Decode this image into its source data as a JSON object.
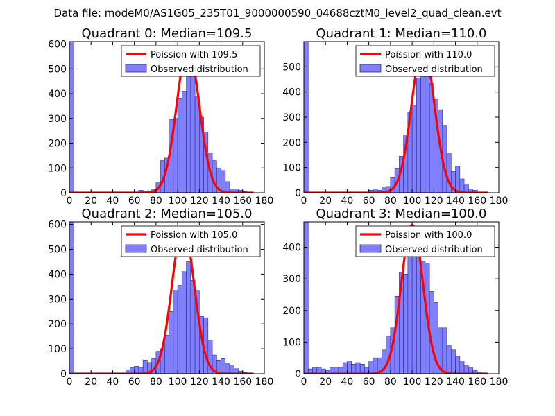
{
  "figure_title": "Data file: modeM0/AS1G05_235T01_9000000590_04688cztM0_level2_quad_clean.evt",
  "colors": {
    "bar_fill": "#8080ff",
    "bar_edge": "#2a2a8a",
    "poisson_line": "#ff0000",
    "axes": "#000000"
  },
  "chart_data": [
    {
      "type": "bar",
      "title": "Quadrant 0: Median=109.5",
      "xlim": [
        0,
        180
      ],
      "ylim": [
        0,
        610
      ],
      "xticks": [
        0,
        20,
        40,
        60,
        80,
        100,
        120,
        140,
        160,
        180
      ],
      "yticks": [
        0,
        100,
        200,
        300,
        400,
        500,
        600
      ],
      "bin_width": 4,
      "bins": [
        {
          "x": 0,
          "count": 610
        },
        {
          "x": 64,
          "count": 10
        },
        {
          "x": 68,
          "count": 6
        },
        {
          "x": 72,
          "count": 8
        },
        {
          "x": 76,
          "count": 15
        },
        {
          "x": 80,
          "count": 40
        },
        {
          "x": 84,
          "count": 130
        },
        {
          "x": 88,
          "count": 140
        },
        {
          "x": 92,
          "count": 295
        },
        {
          "x": 96,
          "count": 300
        },
        {
          "x": 100,
          "count": 380
        },
        {
          "x": 104,
          "count": 410
        },
        {
          "x": 108,
          "count": 505
        },
        {
          "x": 112,
          "count": 555
        },
        {
          "x": 116,
          "count": 390
        },
        {
          "x": 120,
          "count": 305
        },
        {
          "x": 124,
          "count": 245
        },
        {
          "x": 128,
          "count": 160
        },
        {
          "x": 132,
          "count": 130
        },
        {
          "x": 136,
          "count": 100
        },
        {
          "x": 140,
          "count": 90
        },
        {
          "x": 144,
          "count": 45
        },
        {
          "x": 148,
          "count": 15
        },
        {
          "x": 152,
          "count": 15
        },
        {
          "x": 156,
          "count": 10
        },
        {
          "x": 160,
          "count": 5
        }
      ],
      "poisson": {
        "mean": 109.5,
        "peak": 585
      },
      "legend": [
        "Poission with 109.5",
        "Observed distribution"
      ]
    },
    {
      "type": "bar",
      "title": "Quadrant 1: Median=110.0",
      "xlim": [
        0,
        180
      ],
      "ylim": [
        0,
        600
      ],
      "xticks": [
        0,
        20,
        40,
        60,
        80,
        100,
        120,
        140,
        160,
        180
      ],
      "yticks": [
        0,
        100,
        200,
        300,
        400,
        500
      ],
      "bin_width": 4,
      "bins": [
        {
          "x": 0,
          "count": 600
        },
        {
          "x": 60,
          "count": 10
        },
        {
          "x": 64,
          "count": 15
        },
        {
          "x": 68,
          "count": 10
        },
        {
          "x": 72,
          "count": 20
        },
        {
          "x": 76,
          "count": 25
        },
        {
          "x": 80,
          "count": 60
        },
        {
          "x": 84,
          "count": 95
        },
        {
          "x": 88,
          "count": 145
        },
        {
          "x": 92,
          "count": 230
        },
        {
          "x": 96,
          "count": 320
        },
        {
          "x": 100,
          "count": 345
        },
        {
          "x": 104,
          "count": 455
        },
        {
          "x": 108,
          "count": 505
        },
        {
          "x": 112,
          "count": 575
        },
        {
          "x": 116,
          "count": 435
        },
        {
          "x": 120,
          "count": 370
        },
        {
          "x": 124,
          "count": 330
        },
        {
          "x": 128,
          "count": 265
        },
        {
          "x": 132,
          "count": 155
        },
        {
          "x": 136,
          "count": 85
        },
        {
          "x": 140,
          "count": 105
        },
        {
          "x": 144,
          "count": 55
        },
        {
          "x": 148,
          "count": 35
        },
        {
          "x": 152,
          "count": 15
        },
        {
          "x": 156,
          "count": 10
        }
      ],
      "poisson": {
        "mean": 110.0,
        "peak": 580
      },
      "legend": [
        "Poission with 110.0",
        "Observed distribution"
      ]
    },
    {
      "type": "bar",
      "title": "Quadrant 2: Median=105.0",
      "xlim": [
        0,
        180
      ],
      "ylim": [
        0,
        610
      ],
      "xticks": [
        0,
        20,
        40,
        60,
        80,
        100,
        120,
        140,
        160,
        180
      ],
      "yticks": [
        0,
        100,
        200,
        300,
        400,
        500,
        600
      ],
      "bin_width": 4,
      "bins": [
        {
          "x": 0,
          "count": 610
        },
        {
          "x": 52,
          "count": 15
        },
        {
          "x": 56,
          "count": 25
        },
        {
          "x": 60,
          "count": 30
        },
        {
          "x": 64,
          "count": 25
        },
        {
          "x": 68,
          "count": 55
        },
        {
          "x": 72,
          "count": 45
        },
        {
          "x": 76,
          "count": 60
        },
        {
          "x": 80,
          "count": 90
        },
        {
          "x": 84,
          "count": 100
        },
        {
          "x": 88,
          "count": 155
        },
        {
          "x": 92,
          "count": 250
        },
        {
          "x": 96,
          "count": 335
        },
        {
          "x": 100,
          "count": 355
        },
        {
          "x": 104,
          "count": 410
        },
        {
          "x": 108,
          "count": 450
        },
        {
          "x": 112,
          "count": 375
        },
        {
          "x": 116,
          "count": 335
        },
        {
          "x": 120,
          "count": 230
        },
        {
          "x": 124,
          "count": 225
        },
        {
          "x": 128,
          "count": 135
        },
        {
          "x": 132,
          "count": 75
        },
        {
          "x": 136,
          "count": 55
        },
        {
          "x": 140,
          "count": 60
        },
        {
          "x": 144,
          "count": 40
        },
        {
          "x": 148,
          "count": 35
        },
        {
          "x": 152,
          "count": 20
        },
        {
          "x": 156,
          "count": 10
        },
        {
          "x": 160,
          "count": 5
        }
      ],
      "poisson": {
        "mean": 105.0,
        "peak": 590
      },
      "legend": [
        "Poission with 105.0",
        "Observed distribution"
      ]
    },
    {
      "type": "bar",
      "title": "Quadrant 3: Median=100.0",
      "xlim": [
        0,
        180
      ],
      "ylim": [
        0,
        480
      ],
      "xticks": [
        0,
        20,
        40,
        60,
        80,
        100,
        120,
        140,
        160,
        180
      ],
      "yticks": [
        0,
        100,
        200,
        300,
        400
      ],
      "bin_width": 4,
      "bins": [
        {
          "x": 0,
          "count": 480
        },
        {
          "x": 4,
          "count": 15
        },
        {
          "x": 8,
          "count": 20
        },
        {
          "x": 12,
          "count": 20
        },
        {
          "x": 16,
          "count": 15
        },
        {
          "x": 20,
          "count": 10
        },
        {
          "x": 24,
          "count": 20
        },
        {
          "x": 28,
          "count": 20
        },
        {
          "x": 32,
          "count": 20
        },
        {
          "x": 36,
          "count": 35
        },
        {
          "x": 40,
          "count": 40
        },
        {
          "x": 44,
          "count": 30
        },
        {
          "x": 48,
          "count": 35
        },
        {
          "x": 52,
          "count": 30
        },
        {
          "x": 56,
          "count": 20
        },
        {
          "x": 60,
          "count": 40
        },
        {
          "x": 64,
          "count": 50
        },
        {
          "x": 68,
          "count": 50
        },
        {
          "x": 72,
          "count": 75
        },
        {
          "x": 76,
          "count": 120
        },
        {
          "x": 80,
          "count": 145
        },
        {
          "x": 84,
          "count": 245
        },
        {
          "x": 88,
          "count": 320
        },
        {
          "x": 92,
          "count": 315
        },
        {
          "x": 96,
          "count": 400
        },
        {
          "x": 100,
          "count": 400
        },
        {
          "x": 104,
          "count": 380
        },
        {
          "x": 108,
          "count": 355
        },
        {
          "x": 112,
          "count": 350
        },
        {
          "x": 116,
          "count": 260
        },
        {
          "x": 120,
          "count": 225
        },
        {
          "x": 124,
          "count": 145
        },
        {
          "x": 128,
          "count": 145
        },
        {
          "x": 132,
          "count": 90
        },
        {
          "x": 136,
          "count": 75
        },
        {
          "x": 140,
          "count": 55
        },
        {
          "x": 144,
          "count": 40
        },
        {
          "x": 148,
          "count": 25
        },
        {
          "x": 152,
          "count": 20
        },
        {
          "x": 156,
          "count": 10
        },
        {
          "x": 160,
          "count": 5
        }
      ],
      "poisson": {
        "mean": 100.0,
        "peak": 470
      },
      "legend": [
        "Poission with 100.0",
        "Observed distribution"
      ]
    }
  ]
}
